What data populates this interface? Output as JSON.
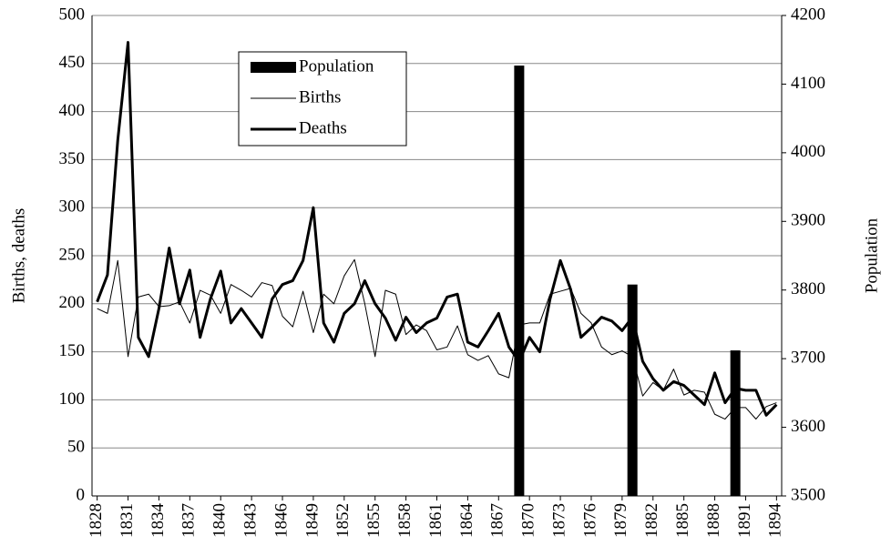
{
  "chart_data": {
    "type": "line",
    "x": [
      1828,
      1829,
      1830,
      1831,
      1832,
      1833,
      1834,
      1835,
      1836,
      1837,
      1838,
      1839,
      1840,
      1841,
      1842,
      1843,
      1844,
      1845,
      1846,
      1847,
      1848,
      1849,
      1850,
      1851,
      1852,
      1853,
      1854,
      1855,
      1856,
      1857,
      1858,
      1859,
      1860,
      1861,
      1862,
      1863,
      1864,
      1865,
      1866,
      1867,
      1868,
      1869,
      1870,
      1871,
      1872,
      1873,
      1874,
      1875,
      1876,
      1877,
      1878,
      1879,
      1880,
      1881,
      1882,
      1883,
      1884,
      1885,
      1886,
      1887,
      1888,
      1889,
      1890,
      1891,
      1892,
      1893,
      1894
    ],
    "xlim": [
      1827.5,
      1894.5
    ],
    "xticks": [
      1828,
      1831,
      1834,
      1837,
      1840,
      1843,
      1846,
      1849,
      1852,
      1855,
      1858,
      1861,
      1864,
      1867,
      1870,
      1873,
      1876,
      1879,
      1882,
      1885,
      1888,
      1891,
      1894
    ],
    "ylabel": "Births, deaths",
    "y2label": "Population",
    "ylim": [
      0,
      500
    ],
    "yticks": [
      0,
      50,
      100,
      150,
      200,
      250,
      300,
      350,
      400,
      450,
      500
    ],
    "y2lim": [
      3500,
      4200
    ],
    "y2ticks": [
      3500,
      3600,
      3700,
      3800,
      3900,
      4000,
      4100,
      4200
    ],
    "grid": true,
    "series": [
      {
        "name": "Population",
        "type": "bar",
        "axis": "y2",
        "color": "#000000",
        "values": [
          null,
          null,
          null,
          null,
          null,
          null,
          null,
          null,
          null,
          null,
          null,
          null,
          null,
          null,
          null,
          null,
          null,
          null,
          null,
          null,
          null,
          null,
          null,
          null,
          null,
          null,
          null,
          null,
          null,
          null,
          null,
          null,
          null,
          null,
          null,
          null,
          null,
          null,
          null,
          null,
          null,
          4127,
          null,
          null,
          null,
          null,
          null,
          null,
          null,
          null,
          null,
          null,
          3808,
          null,
          null,
          null,
          null,
          null,
          null,
          null,
          null,
          null,
          3712,
          null,
          null,
          null,
          null
        ]
      },
      {
        "name": "Births",
        "type": "line",
        "color": "#000000",
        "line_width": 1,
        "values": [
          195,
          190,
          245,
          145,
          207,
          210,
          197,
          198,
          202,
          180,
          214,
          209,
          190,
          220,
          214,
          207,
          222,
          219,
          187,
          176,
          213,
          170,
          210,
          200,
          229,
          246,
          200,
          145,
          214,
          210,
          168,
          178,
          172,
          152,
          155,
          177,
          147,
          141,
          146,
          127,
          123,
          178,
          180,
          180,
          210,
          213,
          216,
          190,
          180,
          155,
          147,
          151,
          145,
          104,
          118,
          110,
          132,
          105,
          110,
          108,
          85,
          80,
          92,
          92,
          80,
          93,
          97
        ]
      },
      {
        "name": "Deaths",
        "type": "line",
        "color": "#000000",
        "line_width": 3,
        "values": [
          202,
          230,
          370,
          472,
          165,
          145,
          195,
          258,
          200,
          235,
          165,
          205,
          234,
          180,
          195,
          180,
          165,
          205,
          220,
          224,
          245,
          300,
          180,
          160,
          190,
          200,
          224,
          200,
          185,
          162,
          186,
          170,
          180,
          185,
          207,
          210,
          160,
          155,
          172,
          190,
          155,
          140,
          165,
          150,
          205,
          245,
          215,
          165,
          175,
          186,
          182,
          172,
          186,
          140,
          122,
          110,
          119,
          115,
          105,
          95,
          128,
          97,
          112,
          110,
          110,
          84,
          95
        ]
      }
    ]
  }
}
